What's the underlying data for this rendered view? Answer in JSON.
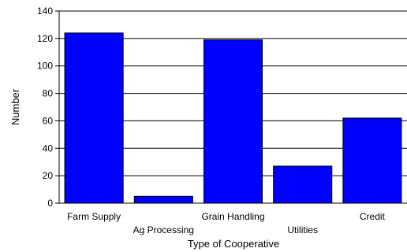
{
  "chart_data": {
    "type": "bar",
    "title": "",
    "xlabel": "Type of Cooperative",
    "ylabel": "Number",
    "ylim": [
      0,
      140
    ],
    "yticks": [
      0,
      20,
      40,
      60,
      80,
      100,
      120,
      140
    ],
    "grid": true,
    "categories": [
      "Farm Supply",
      "Ag Processing",
      "Grain Handling",
      "Utilities",
      "Credit"
    ],
    "values": [
      124,
      5,
      119,
      27,
      62
    ],
    "bar_color": "#0000ff",
    "label_rows": [
      0,
      1,
      0,
      1,
      0
    ]
  }
}
